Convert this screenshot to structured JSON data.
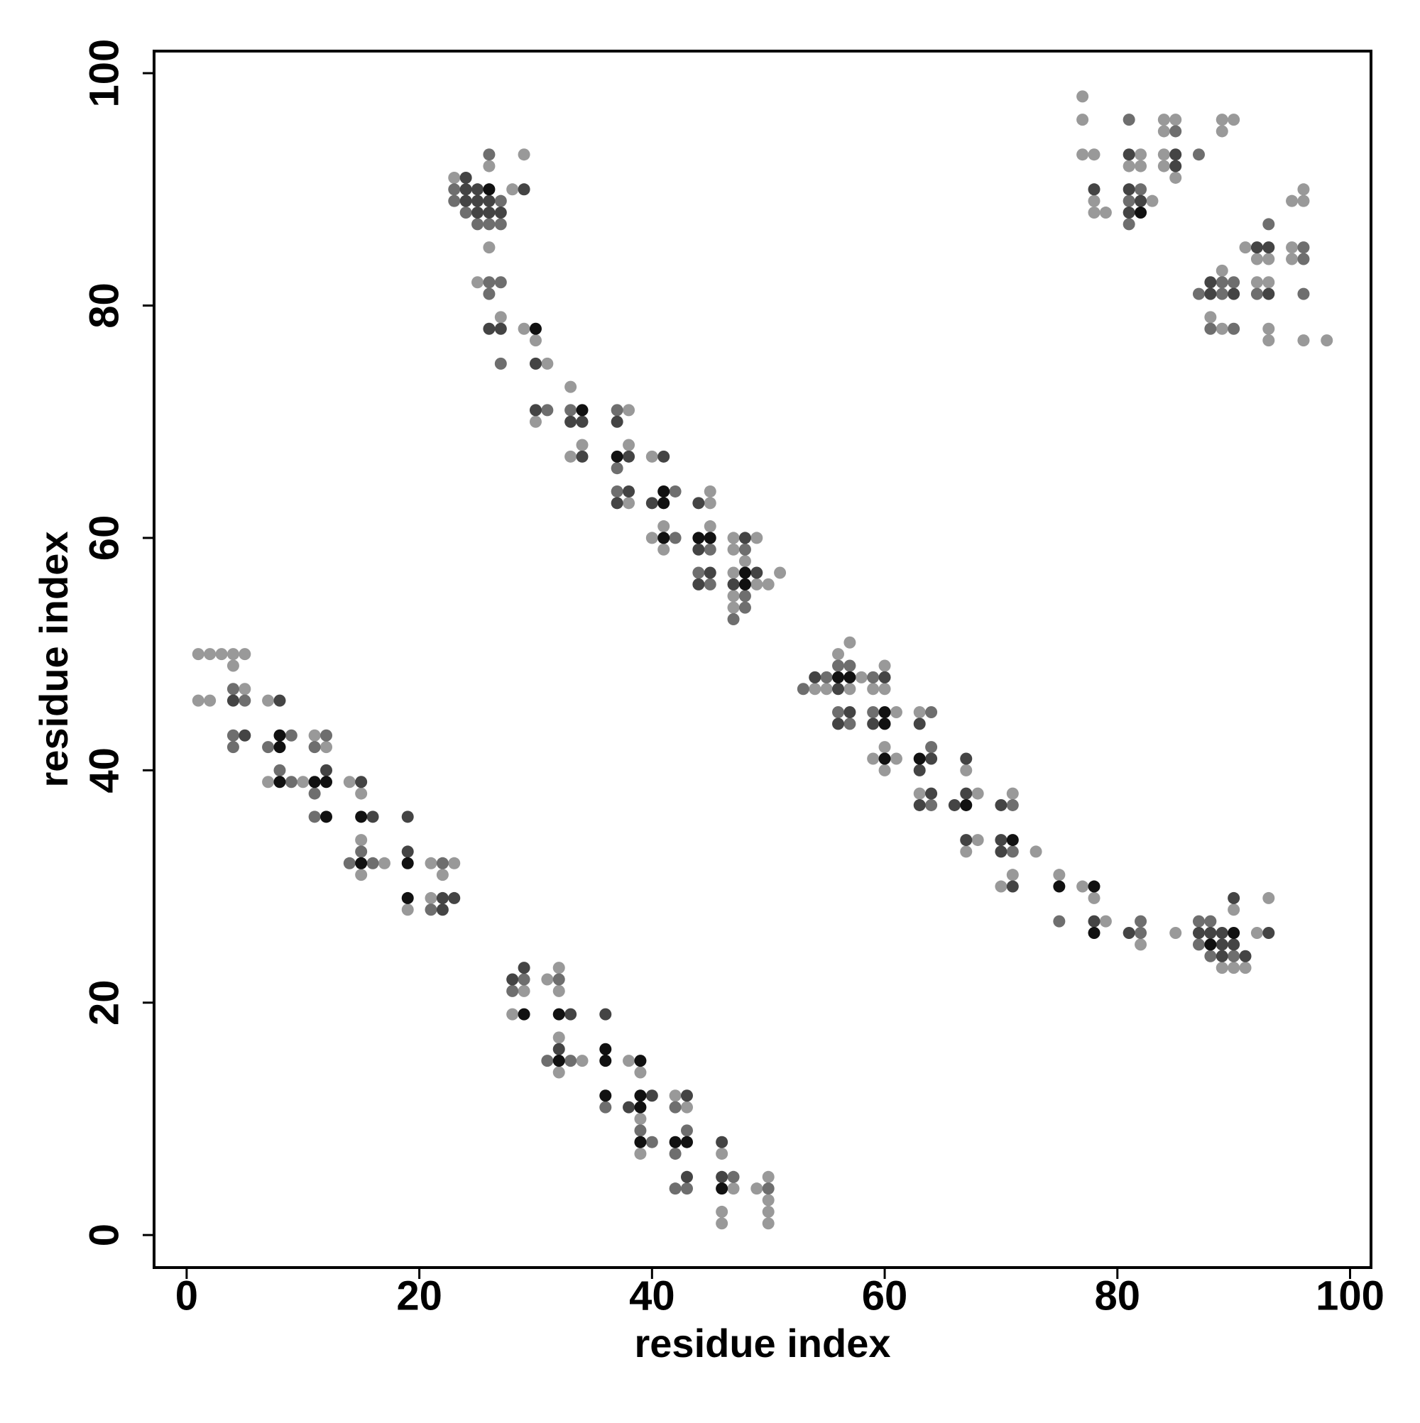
{
  "chart_data": {
    "type": "scatter",
    "x_label": "residue index",
    "y_label": "residue index",
    "xlim": [
      -2.8,
      101.8
    ],
    "ylim": [
      -2.8,
      101.9
    ],
    "xticks": [
      0,
      20,
      40,
      60,
      80,
      100
    ],
    "yticks": [
      0,
      20,
      40,
      60,
      80,
      100
    ],
    "series": [
      {
        "color": "#999999",
        "x": [
          1,
          2,
          3,
          4,
          5,
          4,
          5,
          1,
          2,
          7,
          11,
          12,
          7,
          10,
          14,
          15,
          15,
          17,
          21,
          23,
          15,
          22,
          21,
          19,
          32,
          31,
          29,
          32,
          28,
          32,
          34,
          38,
          32,
          39,
          42,
          43,
          39,
          39,
          46,
          50,
          47,
          49,
          50,
          46,
          50,
          46,
          50,
          29,
          26,
          23,
          28,
          26,
          25,
          27,
          29,
          30,
          31,
          33,
          38,
          30,
          34,
          38,
          33,
          40,
          45,
          38,
          45,
          41,
          45,
          40,
          47,
          49,
          41,
          47,
          48,
          47,
          51,
          49,
          50,
          47,
          47,
          57,
          56,
          60,
          58,
          54,
          55,
          57,
          59,
          60,
          61,
          63,
          60,
          59,
          61,
          60,
          67,
          63,
          68,
          71,
          68,
          67,
          73,
          71,
          75,
          70,
          77,
          78,
          93,
          90,
          79,
          85,
          92,
          82,
          89,
          90,
          91,
          77,
          77,
          84,
          85,
          89,
          90,
          84,
          89,
          77,
          78,
          82,
          84,
          81,
          82,
          84,
          85,
          96,
          78,
          83,
          95,
          96,
          78,
          79,
          91,
          95,
          92,
          93,
          95,
          89,
          92,
          93,
          88,
          89,
          93,
          93,
          96,
          98
        ],
        "y": [
          50,
          50,
          50,
          50,
          50,
          49,
          47,
          46,
          46,
          46,
          43,
          42,
          39,
          39,
          39,
          38,
          34,
          32,
          32,
          32,
          31,
          31,
          29,
          28,
          23,
          22,
          21,
          21,
          19,
          17,
          15,
          15,
          14,
          14,
          12,
          11,
          10,
          7,
          7,
          5,
          4,
          4,
          3,
          2,
          2,
          1,
          1,
          93,
          92,
          91,
          90,
          85,
          82,
          79,
          78,
          77,
          75,
          73,
          71,
          70,
          68,
          68,
          67,
          67,
          64,
          63,
          63,
          61,
          61,
          60,
          60,
          60,
          59,
          59,
          58,
          57,
          57,
          56,
          56,
          55,
          54,
          51,
          50,
          49,
          48,
          47,
          47,
          47,
          47,
          47,
          45,
          45,
          42,
          41,
          41,
          40,
          40,
          38,
          38,
          38,
          34,
          33,
          33,
          31,
          31,
          30,
          30,
          29,
          29,
          28,
          27,
          26,
          26,
          25,
          23,
          23,
          23,
          98,
          96,
          96,
          96,
          96,
          96,
          95,
          95,
          93,
          93,
          93,
          93,
          92,
          92,
          92,
          91,
          90,
          89,
          89,
          89,
          89,
          88,
          88,
          85,
          85,
          84,
          84,
          84,
          83,
          82,
          82,
          79,
          78,
          78,
          77,
          77,
          77
        ]
      },
      {
        "color": "#6e6e6e",
        "x": [
          4,
          5,
          4,
          9,
          12,
          4,
          7,
          11,
          8,
          9,
          11,
          11,
          15,
          14,
          16,
          22,
          21,
          29,
          32,
          28,
          31,
          33,
          36,
          42,
          39,
          43,
          40,
          42,
          47,
          42,
          43,
          50,
          26,
          23,
          23,
          27,
          24,
          25,
          26,
          27,
          26,
          27,
          26,
          27,
          31,
          33,
          37,
          37,
          37,
          42,
          42,
          45,
          48,
          44,
          45,
          48,
          48,
          47,
          56,
          57,
          55,
          59,
          53,
          56,
          59,
          64,
          57,
          64,
          64,
          71,
          71,
          75,
          82,
          87,
          88,
          82,
          87,
          88,
          90,
          81,
          85,
          87,
          82,
          81,
          81,
          93,
          96,
          96,
          89,
          90,
          87,
          89,
          92,
          96,
          88,
          90
        ],
        "y": [
          47,
          46,
          43,
          43,
          43,
          42,
          42,
          42,
          40,
          39,
          38,
          36,
          33,
          32,
          32,
          32,
          28,
          22,
          22,
          21,
          15,
          15,
          11,
          11,
          9,
          9,
          8,
          7,
          5,
          4,
          4,
          4,
          93,
          90,
          89,
          89,
          88,
          87,
          87,
          87,
          82,
          82,
          81,
          75,
          71,
          71,
          71,
          66,
          64,
          64,
          60,
          59,
          59,
          57,
          56,
          55,
          54,
          53,
          49,
          49,
          48,
          48,
          47,
          45,
          45,
          45,
          44,
          42,
          37,
          37,
          33,
          27,
          27,
          27,
          27,
          26,
          25,
          24,
          24,
          96,
          95,
          93,
          90,
          89,
          87,
          87,
          85,
          84,
          82,
          82,
          81,
          81,
          81,
          81,
          78,
          78
        ]
      },
      {
        "color": "#444444",
        "x": [
          4,
          8,
          5,
          12,
          15,
          16,
          19,
          19,
          22,
          23,
          22,
          29,
          28,
          33,
          36,
          32,
          40,
          43,
          38,
          46,
          43,
          46,
          24,
          24,
          25,
          29,
          24,
          25,
          26,
          25,
          26,
          27,
          26,
          27,
          30,
          30,
          33,
          34,
          37,
          34,
          38,
          41,
          38,
          37,
          40,
          44,
          48,
          44,
          45,
          49,
          44,
          47,
          54,
          60,
          56,
          57,
          56,
          59,
          63,
          64,
          67,
          63,
          64,
          67,
          63,
          66,
          70,
          67,
          70,
          70,
          71,
          90,
          78,
          81,
          87,
          88,
          89,
          93,
          89,
          90,
          89,
          91,
          81,
          85,
          85,
          78,
          81,
          82,
          81,
          92,
          93,
          88,
          88,
          90,
          93
        ],
        "y": [
          46,
          46,
          43,
          40,
          39,
          36,
          36,
          33,
          29,
          29,
          28,
          23,
          22,
          19,
          19,
          16,
          12,
          12,
          11,
          8,
          5,
          5,
          91,
          90,
          90,
          90,
          89,
          89,
          89,
          88,
          88,
          88,
          78,
          78,
          75,
          71,
          70,
          70,
          70,
          67,
          67,
          67,
          64,
          63,
          63,
          63,
          60,
          59,
          57,
          57,
          56,
          56,
          48,
          48,
          47,
          45,
          44,
          44,
          44,
          41,
          41,
          40,
          38,
          38,
          37,
          37,
          37,
          34,
          34,
          33,
          30,
          29,
          27,
          26,
          26,
          26,
          26,
          26,
          25,
          25,
          24,
          24,
          93,
          93,
          92,
          90,
          90,
          89,
          88,
          85,
          85,
          82,
          81,
          81,
          81
        ]
      },
      {
        "color": "#111111",
        "x": [
          8,
          8,
          8,
          11,
          12,
          12,
          15,
          15,
          19,
          19,
          29,
          32,
          36,
          32,
          36,
          39,
          36,
          39,
          39,
          39,
          42,
          43,
          46,
          26,
          30,
          34,
          37,
          41,
          41,
          41,
          44,
          45,
          48,
          48,
          56,
          57,
          60,
          60,
          60,
          63,
          67,
          71,
          75,
          78,
          78,
          90,
          88,
          82
        ],
        "y": [
          43,
          42,
          39,
          39,
          39,
          36,
          36,
          32,
          32,
          29,
          19,
          19,
          16,
          15,
          15,
          15,
          12,
          12,
          11,
          8,
          8,
          8,
          4,
          90,
          78,
          71,
          67,
          64,
          63,
          60,
          60,
          60,
          57,
          56,
          48,
          48,
          45,
          44,
          41,
          41,
          37,
          34,
          30,
          30,
          26,
          26,
          25,
          88
        ]
      }
    ]
  }
}
